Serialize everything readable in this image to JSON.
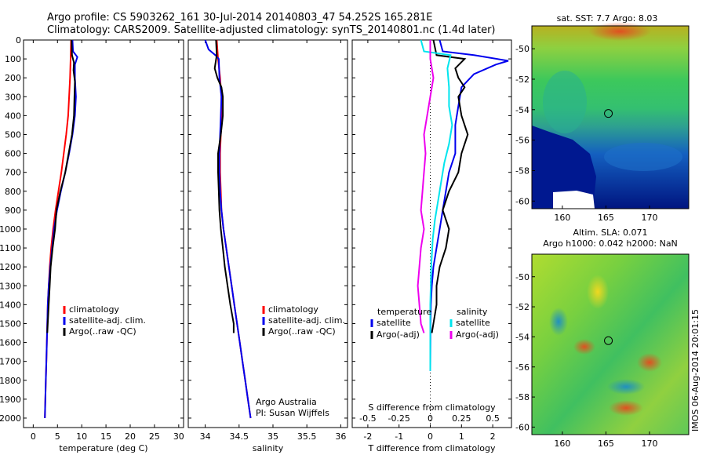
{
  "header": {
    "line1": "Argo profile: CS 5903262_161 30-Jul-2014 20140803_47 54.252S 165.281E",
    "line2": "Climatology: CARS2009. Satellite-adjusted climatology: synTS_20140801.nc (1.4d later)"
  },
  "colors": {
    "climatology": "#ff0000",
    "satellite": "#0000ee",
    "argo": "#000000",
    "satellite_s": "#00e5ee",
    "argo_s": "#ee00ee"
  },
  "chart_data": [
    {
      "type": "line",
      "panel": "temperature",
      "xlabel": "temperature (deg C)",
      "ylabel": "",
      "xlim": [
        -2,
        31
      ],
      "ylim": [
        2050,
        0
      ],
      "xticks": [
        0,
        5,
        10,
        15,
        20,
        25,
        30
      ],
      "yticks": [
        0,
        100,
        200,
        300,
        400,
        500,
        600,
        700,
        800,
        900,
        1000,
        1100,
        1200,
        1300,
        1400,
        1500,
        1600,
        1700,
        1800,
        1900,
        2000
      ],
      "legend": [
        "climatology",
        "satellite-adj. clim.",
        "Argo(..raw -QC)"
      ],
      "series": [
        {
          "name": "climatology",
          "color_key": "climatology",
          "points": [
            [
              7.8,
              0
            ],
            [
              7.7,
              100
            ],
            [
              7.6,
              200
            ],
            [
              7.4,
              300
            ],
            [
              7.2,
              400
            ],
            [
              6.8,
              500
            ],
            [
              6.3,
              600
            ],
            [
              5.8,
              700
            ],
            [
              5.2,
              800
            ],
            [
              4.6,
              900
            ],
            [
              4.1,
              1000
            ],
            [
              3.7,
              1100
            ],
            [
              3.4,
              1200
            ],
            [
              3.2,
              1300
            ],
            [
              3.0,
              1400
            ],
            [
              2.9,
              1500
            ],
            [
              2.8,
              1600
            ],
            [
              2.7,
              1700
            ],
            [
              2.6,
              1800
            ],
            [
              2.5,
              1900
            ],
            [
              2.4,
              2000
            ]
          ]
        },
        {
          "name": "satellite-adj. clim.",
          "color_key": "satellite",
          "points": [
            [
              8.1,
              0
            ],
            [
              8.2,
              60
            ],
            [
              9.1,
              90
            ],
            [
              8.6,
              130
            ],
            [
              8.6,
              200
            ],
            [
              8.8,
              300
            ],
            [
              8.6,
              400
            ],
            [
              8.1,
              500
            ],
            [
              7.4,
              600
            ],
            [
              6.6,
              700
            ],
            [
              5.7,
              800
            ],
            [
              4.9,
              900
            ],
            [
              4.3,
              1000
            ],
            [
              3.9,
              1100
            ],
            [
              3.5,
              1200
            ],
            [
              3.2,
              1300
            ],
            [
              3.0,
              1400
            ],
            [
              2.9,
              1500
            ],
            [
              2.8,
              1600
            ],
            [
              2.7,
              1700
            ],
            [
              2.6,
              1800
            ],
            [
              2.5,
              1900
            ],
            [
              2.4,
              2000
            ]
          ]
        },
        {
          "name": "Argo(..raw -QC)",
          "color_key": "argo",
          "points": [
            [
              7.9,
              0
            ],
            [
              8.0,
              80
            ],
            [
              8.4,
              120
            ],
            [
              8.3,
              160
            ],
            [
              8.6,
              220
            ],
            [
              8.5,
              300
            ],
            [
              8.4,
              400
            ],
            [
              8.0,
              500
            ],
            [
              7.3,
              600
            ],
            [
              6.6,
              700
            ],
            [
              5.6,
              800
            ],
            [
              4.8,
              900
            ],
            [
              4.5,
              1000
            ],
            [
              4.0,
              1100
            ],
            [
              3.6,
              1200
            ],
            [
              3.4,
              1300
            ],
            [
              3.2,
              1400
            ],
            [
              3.0,
              1500
            ],
            [
              2.9,
              1550
            ]
          ]
        }
      ]
    },
    {
      "type": "line",
      "panel": "salinity",
      "xlabel": "salinity",
      "xlim": [
        33.75,
        36.1
      ],
      "ylim": [
        2050,
        0
      ],
      "xticks": [
        34,
        34.5,
        35,
        35.5,
        36
      ],
      "legend": [
        "climatology",
        "satellite-adj. clim.",
        "Argo(..raw -QC)"
      ],
      "annotation": [
        "Argo Australia",
        "PI: Susan Wijffels"
      ],
      "series": [
        {
          "name": "climatology",
          "color_key": "climatology",
          "points": [
            [
              34.17,
              0
            ],
            [
              34.19,
              100
            ],
            [
              34.22,
              200
            ],
            [
              34.24,
              300
            ],
            [
              34.24,
              400
            ],
            [
              34.23,
              500
            ],
            [
              34.22,
              600
            ],
            [
              34.22,
              700
            ],
            [
              34.23,
              800
            ],
            [
              34.24,
              900
            ],
            [
              34.27,
              1000
            ],
            [
              34.31,
              1100
            ],
            [
              34.35,
              1200
            ],
            [
              34.39,
              1300
            ],
            [
              34.43,
              1400
            ],
            [
              34.47,
              1500
            ],
            [
              34.51,
              1600
            ],
            [
              34.55,
              1700
            ],
            [
              34.59,
              1800
            ],
            [
              34.63,
              1900
            ],
            [
              34.67,
              2000
            ]
          ]
        },
        {
          "name": "satellite-adj. clim.",
          "color_key": "satellite",
          "points": [
            [
              34.0,
              0
            ],
            [
              34.05,
              50
            ],
            [
              34.15,
              80
            ],
            [
              34.2,
              100
            ],
            [
              34.21,
              200
            ],
            [
              34.24,
              300
            ],
            [
              34.23,
              400
            ],
            [
              34.22,
              500
            ],
            [
              34.21,
              600
            ],
            [
              34.21,
              700
            ],
            [
              34.22,
              800
            ],
            [
              34.24,
              900
            ],
            [
              34.27,
              1000
            ],
            [
              34.31,
              1100
            ],
            [
              34.35,
              1200
            ],
            [
              34.39,
              1300
            ],
            [
              34.43,
              1400
            ],
            [
              34.47,
              1500
            ],
            [
              34.51,
              1600
            ],
            [
              34.55,
              1700
            ],
            [
              34.59,
              1800
            ],
            [
              34.63,
              1900
            ],
            [
              34.67,
              2000
            ]
          ]
        },
        {
          "name": "Argo(..raw -QC)",
          "color_key": "argo",
          "points": [
            [
              34.16,
              0
            ],
            [
              34.17,
              80
            ],
            [
              34.14,
              150
            ],
            [
              34.18,
              200
            ],
            [
              34.24,
              250
            ],
            [
              34.26,
              300
            ],
            [
              34.26,
              400
            ],
            [
              34.23,
              500
            ],
            [
              34.19,
              600
            ],
            [
              34.19,
              700
            ],
            [
              34.2,
              800
            ],
            [
              34.21,
              900
            ],
            [
              34.23,
              1000
            ],
            [
              34.26,
              1100
            ],
            [
              34.29,
              1200
            ],
            [
              34.33,
              1300
            ],
            [
              34.37,
              1400
            ],
            [
              34.42,
              1500
            ],
            [
              34.42,
              1550
            ]
          ]
        }
      ]
    },
    {
      "type": "line",
      "panel": "difference",
      "xlabel": "T difference from climatology",
      "xlabel_top": "S difference from climatology",
      "xlim": [
        -2.5,
        2.6
      ],
      "ylim": [
        2050,
        0
      ],
      "xticks": [
        -2,
        -1,
        0,
        1,
        2
      ],
      "xticks_top": [
        -0.5,
        -0.25,
        0,
        0.25,
        0.5
      ],
      "legend_titles": [
        "temperature",
        "salinity"
      ],
      "legend": [
        "satellite",
        "Argo(-adj)",
        "satellite",
        "Argo(-adj)"
      ],
      "series": [
        {
          "name": "satellite",
          "color_key": "satellite",
          "points": [
            [
              0.3,
              0
            ],
            [
              0.4,
              60
            ],
            [
              1.4,
              80
            ],
            [
              2.5,
              110
            ],
            [
              2.1,
              130
            ],
            [
              1.4,
              180
            ],
            [
              1.0,
              250
            ],
            [
              0.9,
              350
            ],
            [
              0.8,
              450
            ],
            [
              0.8,
              600
            ],
            [
              0.6,
              700
            ],
            [
              0.5,
              800
            ],
            [
              0.4,
              900
            ],
            [
              0.3,
              1000
            ],
            [
              0.2,
              1100
            ],
            [
              0.1,
              1200
            ],
            [
              0.05,
              1300
            ],
            [
              0.02,
              1400
            ],
            [
              0.01,
              1500
            ],
            [
              0.0,
              1750
            ]
          ]
        },
        {
          "name": "Argo(-adj)",
          "color_key": "argo",
          "points": [
            [
              0.1,
              0
            ],
            [
              0.2,
              80
            ],
            [
              1.1,
              100
            ],
            [
              0.8,
              150
            ],
            [
              0.9,
              200
            ],
            [
              1.1,
              250
            ],
            [
              0.9,
              300
            ],
            [
              1.0,
              400
            ],
            [
              1.2,
              500
            ],
            [
              1.0,
              600
            ],
            [
              0.9,
              700
            ],
            [
              0.6,
              800
            ],
            [
              0.4,
              900
            ],
            [
              0.6,
              1000
            ],
            [
              0.5,
              1100
            ],
            [
              0.3,
              1200
            ],
            [
              0.2,
              1300
            ],
            [
              0.2,
              1400
            ],
            [
              0.1,
              1500
            ],
            [
              0.05,
              1550
            ]
          ]
        },
        {
          "name": "satellite",
          "color_key": "satellite_s",
          "points": [
            [
              -0.3,
              0
            ],
            [
              -0.2,
              60
            ],
            [
              0.65,
              80
            ],
            [
              0.55,
              150
            ],
            [
              0.6,
              250
            ],
            [
              0.6,
              350
            ],
            [
              0.7,
              450
            ],
            [
              0.6,
              550
            ],
            [
              0.45,
              650
            ],
            [
              0.35,
              750
            ],
            [
              0.25,
              850
            ],
            [
              0.15,
              950
            ],
            [
              0.08,
              1050
            ],
            [
              0.03,
              1200
            ],
            [
              0.0,
              1400
            ],
            [
              0.0,
              1750
            ]
          ]
        },
        {
          "name": "Argo(-adj)",
          "color_key": "argo_s",
          "points": [
            [
              0.0,
              0
            ],
            [
              0.0,
              100
            ],
            [
              0.1,
              200
            ],
            [
              0.0,
              300
            ],
            [
              -0.1,
              400
            ],
            [
              -0.2,
              500
            ],
            [
              -0.15,
              600
            ],
            [
              -0.2,
              700
            ],
            [
              -0.25,
              800
            ],
            [
              -0.3,
              900
            ],
            [
              -0.2,
              1000
            ],
            [
              -0.3,
              1100
            ],
            [
              -0.35,
              1200
            ],
            [
              -0.4,
              1300
            ],
            [
              -0.35,
              1400
            ],
            [
              -0.3,
              1500
            ],
            [
              -0.2,
              1550
            ]
          ]
        }
      ]
    },
    {
      "type": "heatmap",
      "panel": "map_sst",
      "title": "sat. SST: 7.7 Argo: 8.03",
      "xlim": [
        156.5,
        174.5
      ],
      "ylim": [
        -60.5,
        -48.5
      ],
      "xticks": [
        160,
        165,
        170
      ],
      "yticks": [
        -50,
        -52,
        -54,
        -56,
        -58,
        -60
      ],
      "marker_position": [
        165.28,
        -54.25
      ]
    },
    {
      "type": "heatmap",
      "panel": "map_sla",
      "title": "Altim. SLA: 0.071",
      "subtitle": "Argo h1000: 0.042 h2000: NaN",
      "xlim": [
        156.5,
        174.5
      ],
      "ylim": [
        -60.5,
        -48.5
      ],
      "xticks": [
        160,
        165,
        170
      ],
      "yticks": [
        -50,
        -52,
        -54,
        -56,
        -58,
        -60
      ],
      "marker_position": [
        165.28,
        -54.25
      ],
      "stamp": "IMOS 06-Aug-2014 20:01:15"
    }
  ]
}
